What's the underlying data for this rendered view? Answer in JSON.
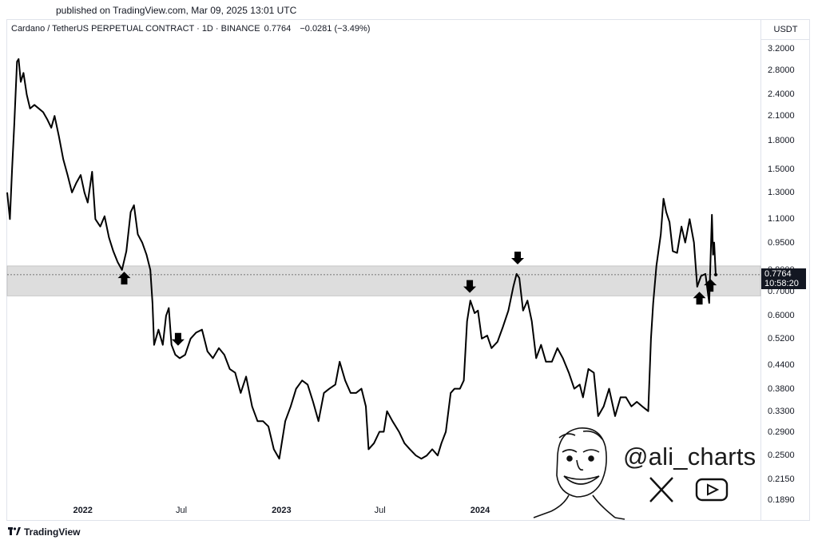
{
  "published": "published on TradingView.com, Mar 09, 2025 13:01 UTC",
  "header": {
    "symbol": "Cardano / TetherUS PERPETUAL CONTRACT · 1D · BINANCE",
    "price": "0.7764",
    "change": "−0.0281 (−3.49%)"
  },
  "currency": "USDT",
  "last_price_label": {
    "price": "0.7764",
    "countdown": "10:58:20"
  },
  "branding": {
    "tradingview": "TradingView",
    "handle": "@ali_charts",
    "icons": [
      "x-logo-icon",
      "youtube-icon"
    ]
  },
  "colors": {
    "line": "#000000",
    "zone": "#dddddd",
    "label_bg": "#131722"
  },
  "chart_data": {
    "type": "line",
    "title": "Cardano / TetherUS PERPETUAL CONTRACT · 1D · BINANCE",
    "y_scale": "log",
    "ylim": [
      0.19,
      3.2
    ],
    "y_ticks": [
      "3.2000",
      "2.8000",
      "2.4000",
      "2.1000",
      "1.8000",
      "1.5000",
      "1.3000",
      "1.1000",
      "0.9500",
      "0.8000",
      "0.7000",
      "0.6000",
      "0.5200",
      "0.4400",
      "0.3800",
      "0.3300",
      "0.2900",
      "0.2500",
      "0.2150",
      "0.1890"
    ],
    "x_ticks": [
      {
        "label": "2022",
        "date": "2022-01-01",
        "bold": true
      },
      {
        "label": "Jul",
        "date": "2022-07-01",
        "bold": false
      },
      {
        "label": "2023",
        "date": "2023-01-01",
        "bold": true
      },
      {
        "label": "Jul",
        "date": "2023-07-01",
        "bold": false
      },
      {
        "label": "2024",
        "date": "2024-01-01",
        "bold": true
      }
    ],
    "zone": [
      0.68,
      0.82
    ],
    "series": [
      {
        "points": [
          [
            "2021-08-15",
            1.3
          ],
          [
            "2021-08-20",
            1.1
          ],
          [
            "2021-08-24",
            1.5
          ],
          [
            "2021-08-28",
            2.0
          ],
          [
            "2021-09-02",
            2.95
          ],
          [
            "2021-09-05",
            3.0
          ],
          [
            "2021-09-09",
            2.6
          ],
          [
            "2021-09-14",
            2.75
          ],
          [
            "2021-09-20",
            2.4
          ],
          [
            "2021-09-26",
            2.2
          ],
          [
            "2021-10-04",
            2.25
          ],
          [
            "2021-10-12",
            2.2
          ],
          [
            "2021-10-20",
            2.15
          ],
          [
            "2021-10-28",
            2.05
          ],
          [
            "2021-11-04",
            1.95
          ],
          [
            "2021-11-10",
            2.1
          ],
          [
            "2021-11-18",
            1.85
          ],
          [
            "2021-11-26",
            1.6
          ],
          [
            "2021-12-04",
            1.45
          ],
          [
            "2021-12-12",
            1.3
          ],
          [
            "2021-12-20",
            1.38
          ],
          [
            "2021-12-28",
            1.45
          ],
          [
            "2022-01-04",
            1.3
          ],
          [
            "2022-01-10",
            1.22
          ],
          [
            "2022-01-18",
            1.48
          ],
          [
            "2022-01-24",
            1.1
          ],
          [
            "2022-02-02",
            1.05
          ],
          [
            "2022-02-10",
            1.12
          ],
          [
            "2022-02-18",
            0.98
          ],
          [
            "2022-02-26",
            0.9
          ],
          [
            "2022-03-06",
            0.84
          ],
          [
            "2022-03-14",
            0.8
          ],
          [
            "2022-03-22",
            0.9
          ],
          [
            "2022-03-30",
            1.15
          ],
          [
            "2022-04-05",
            1.2
          ],
          [
            "2022-04-12",
            1.0
          ],
          [
            "2022-04-20",
            0.95
          ],
          [
            "2022-04-28",
            0.88
          ],
          [
            "2022-05-05",
            0.8
          ],
          [
            "2022-05-09",
            0.65
          ],
          [
            "2022-05-12",
            0.5
          ],
          [
            "2022-05-20",
            0.55
          ],
          [
            "2022-05-28",
            0.5
          ],
          [
            "2022-06-03",
            0.6
          ],
          [
            "2022-06-08",
            0.63
          ],
          [
            "2022-06-13",
            0.5
          ],
          [
            "2022-06-20",
            0.47
          ],
          [
            "2022-06-28",
            0.46
          ],
          [
            "2022-07-08",
            0.47
          ],
          [
            "2022-07-18",
            0.52
          ],
          [
            "2022-07-28",
            0.54
          ],
          [
            "2022-08-08",
            0.55
          ],
          [
            "2022-08-18",
            0.48
          ],
          [
            "2022-08-28",
            0.46
          ],
          [
            "2022-09-08",
            0.49
          ],
          [
            "2022-09-18",
            0.47
          ],
          [
            "2022-09-28",
            0.43
          ],
          [
            "2022-10-08",
            0.42
          ],
          [
            "2022-10-18",
            0.37
          ],
          [
            "2022-10-28",
            0.41
          ],
          [
            "2022-11-08",
            0.34
          ],
          [
            "2022-11-18",
            0.31
          ],
          [
            "2022-11-28",
            0.31
          ],
          [
            "2022-12-08",
            0.3
          ],
          [
            "2022-12-18",
            0.26
          ],
          [
            "2022-12-28",
            0.245
          ],
          [
            "2023-01-08",
            0.31
          ],
          [
            "2023-01-18",
            0.34
          ],
          [
            "2023-01-28",
            0.38
          ],
          [
            "2023-02-08",
            0.4
          ],
          [
            "2023-02-18",
            0.39
          ],
          [
            "2023-02-28",
            0.35
          ],
          [
            "2023-03-10",
            0.31
          ],
          [
            "2023-03-20",
            0.37
          ],
          [
            "2023-03-30",
            0.38
          ],
          [
            "2023-04-10",
            0.39
          ],
          [
            "2023-04-18",
            0.45
          ],
          [
            "2023-04-28",
            0.4
          ],
          [
            "2023-05-08",
            0.37
          ],
          [
            "2023-05-18",
            0.37
          ],
          [
            "2023-05-28",
            0.38
          ],
          [
            "2023-06-05",
            0.34
          ],
          [
            "2023-06-10",
            0.26
          ],
          [
            "2023-06-20",
            0.27
          ],
          [
            "2023-06-30",
            0.29
          ],
          [
            "2023-07-08",
            0.29
          ],
          [
            "2023-07-14",
            0.33
          ],
          [
            "2023-07-24",
            0.31
          ],
          [
            "2023-08-05",
            0.29
          ],
          [
            "2023-08-15",
            0.27
          ],
          [
            "2023-08-25",
            0.26
          ],
          [
            "2023-09-05",
            0.25
          ],
          [
            "2023-09-15",
            0.245
          ],
          [
            "2023-09-25",
            0.25
          ],
          [
            "2023-10-05",
            0.26
          ],
          [
            "2023-10-15",
            0.25
          ],
          [
            "2023-10-22",
            0.27
          ],
          [
            "2023-10-30",
            0.29
          ],
          [
            "2023-11-08",
            0.37
          ],
          [
            "2023-11-15",
            0.38
          ],
          [
            "2023-11-25",
            0.38
          ],
          [
            "2023-12-02",
            0.4
          ],
          [
            "2023-12-08",
            0.58
          ],
          [
            "2023-12-14",
            0.66
          ],
          [
            "2023-12-22",
            0.61
          ],
          [
            "2023-12-28",
            0.62
          ],
          [
            "2024-01-04",
            0.52
          ],
          [
            "2024-01-14",
            0.53
          ],
          [
            "2024-01-22",
            0.49
          ],
          [
            "2024-02-02",
            0.51
          ],
          [
            "2024-02-12",
            0.56
          ],
          [
            "2024-02-22",
            0.62
          ],
          [
            "2024-03-02",
            0.72
          ],
          [
            "2024-03-08",
            0.78
          ],
          [
            "2024-03-13",
            0.76
          ],
          [
            "2024-03-20",
            0.62
          ],
          [
            "2024-03-28",
            0.66
          ],
          [
            "2024-04-05",
            0.58
          ],
          [
            "2024-04-13",
            0.46
          ],
          [
            "2024-04-22",
            0.5
          ],
          [
            "2024-05-01",
            0.45
          ],
          [
            "2024-05-12",
            0.45
          ],
          [
            "2024-05-22",
            0.49
          ],
          [
            "2024-06-01",
            0.46
          ],
          [
            "2024-06-12",
            0.42
          ],
          [
            "2024-06-22",
            0.38
          ],
          [
            "2024-07-02",
            0.39
          ],
          [
            "2024-07-08",
            0.36
          ],
          [
            "2024-07-18",
            0.43
          ],
          [
            "2024-07-28",
            0.42
          ],
          [
            "2024-08-05",
            0.32
          ],
          [
            "2024-08-15",
            0.34
          ],
          [
            "2024-08-25",
            0.38
          ],
          [
            "2024-09-05",
            0.32
          ],
          [
            "2024-09-15",
            0.36
          ],
          [
            "2024-09-25",
            0.36
          ],
          [
            "2024-10-05",
            0.34
          ],
          [
            "2024-10-15",
            0.35
          ],
          [
            "2024-10-25",
            0.34
          ],
          [
            "2024-11-05",
            0.33
          ],
          [
            "2024-11-10",
            0.52
          ],
          [
            "2024-11-14",
            0.65
          ],
          [
            "2024-11-20",
            0.82
          ],
          [
            "2024-11-28",
            1.0
          ],
          [
            "2024-12-03",
            1.25
          ],
          [
            "2024-12-08",
            1.15
          ],
          [
            "2024-12-14",
            1.08
          ],
          [
            "2024-12-20",
            0.9
          ],
          [
            "2024-12-28",
            0.89
          ],
          [
            "2025-01-05",
            1.05
          ],
          [
            "2025-01-12",
            0.95
          ],
          [
            "2025-01-20",
            1.1
          ],
          [
            "2025-01-28",
            0.95
          ],
          [
            "2025-02-03",
            0.72
          ],
          [
            "2025-02-10",
            0.77
          ],
          [
            "2025-02-18",
            0.78
          ],
          [
            "2025-02-25",
            0.65
          ],
          [
            "2025-03-02",
            1.13
          ],
          [
            "2025-03-04",
            0.88
          ],
          [
            "2025-03-06",
            0.95
          ],
          [
            "2025-03-09",
            0.7764
          ]
        ]
      }
    ],
    "annotations": [
      {
        "type": "up-arrow",
        "date": "2022-03-18"
      },
      {
        "type": "down-arrow",
        "date": "2022-06-25"
      },
      {
        "type": "down-arrow",
        "date": "2023-12-13"
      },
      {
        "type": "down-arrow",
        "date": "2024-03-10"
      },
      {
        "type": "up-arrow",
        "date": "2025-02-07"
      },
      {
        "type": "up-arrow",
        "date": "2025-02-27"
      }
    ]
  }
}
